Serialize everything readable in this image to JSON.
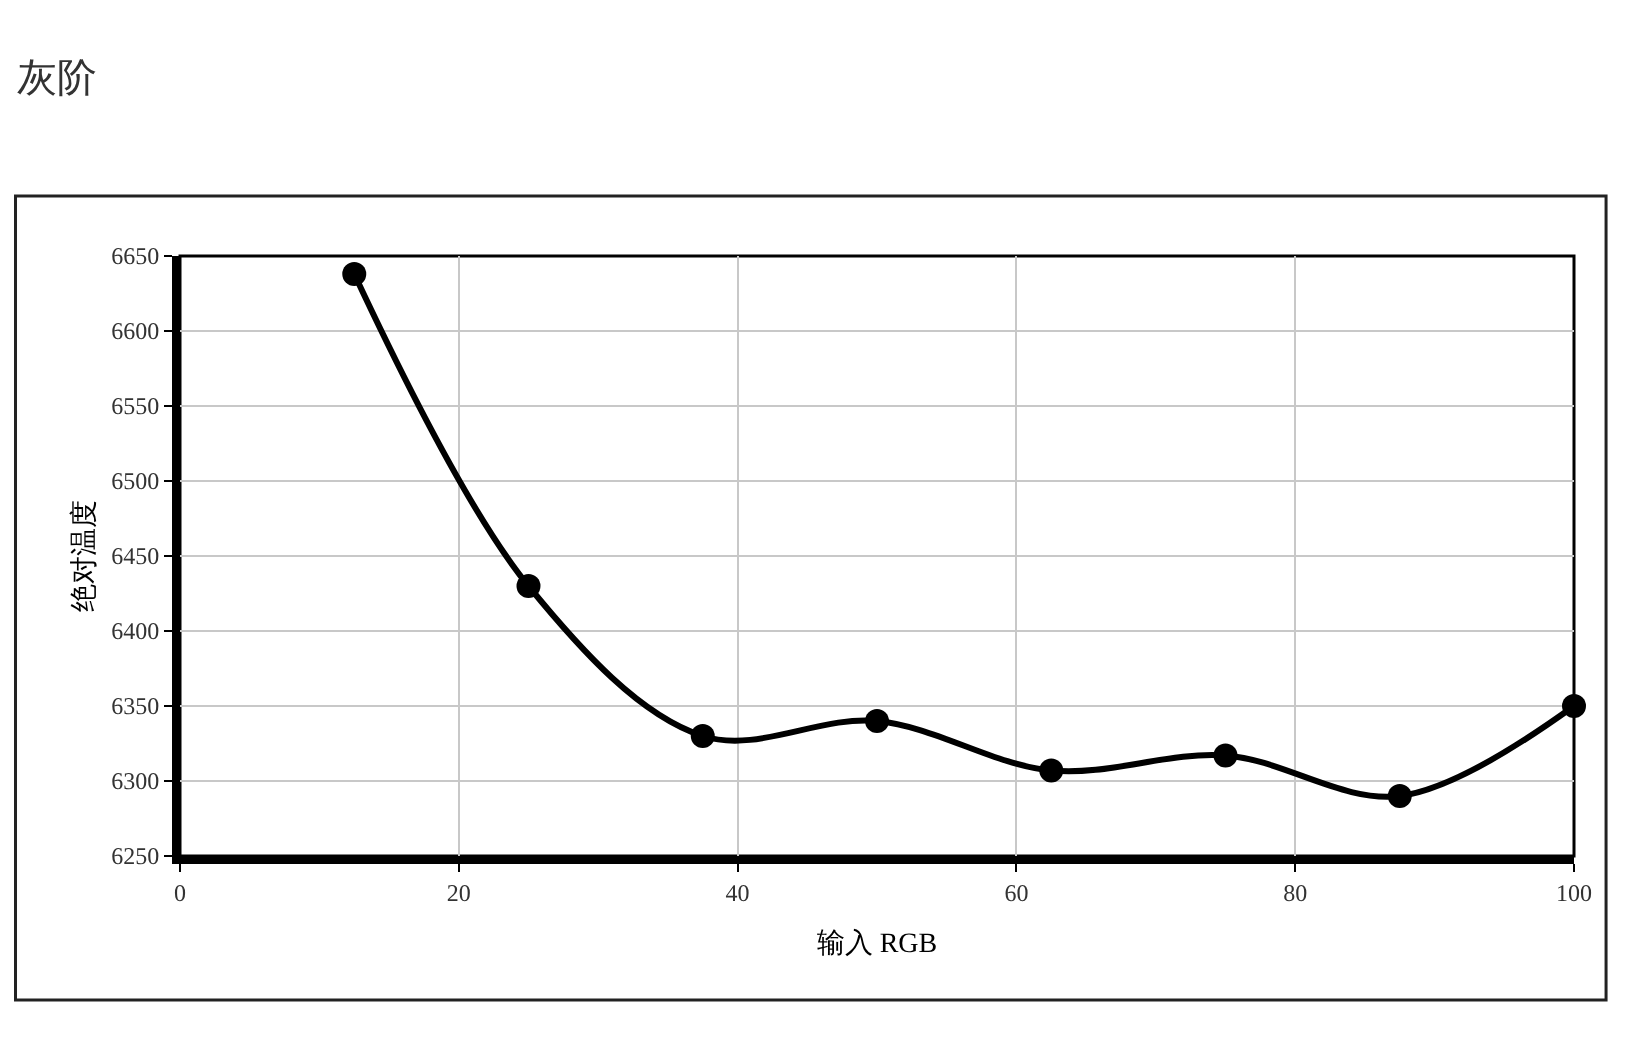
{
  "chart_data": {
    "type": "line",
    "title": "灰阶",
    "xlabel": "输入 RGB",
    "ylabel": "绝对温度",
    "x": [
      12.5,
      25,
      37.5,
      50,
      62.5,
      75,
      87.5,
      100
    ],
    "series": [
      {
        "color": "#000000",
        "values": [
          6638,
          6430,
          6330,
          6340,
          6307,
          6317,
          6290,
          6350
        ]
      }
    ],
    "xlim": [
      0,
      100
    ],
    "xticks": [
      0,
      20,
      40,
      60,
      80,
      100
    ],
    "ylim": [
      6250,
      6650
    ],
    "yticks": [
      6250,
      6300,
      6350,
      6400,
      6450,
      6500,
      6550,
      6600,
      6650
    ],
    "grid": true,
    "marker": "circle",
    "line_style": "solid"
  }
}
